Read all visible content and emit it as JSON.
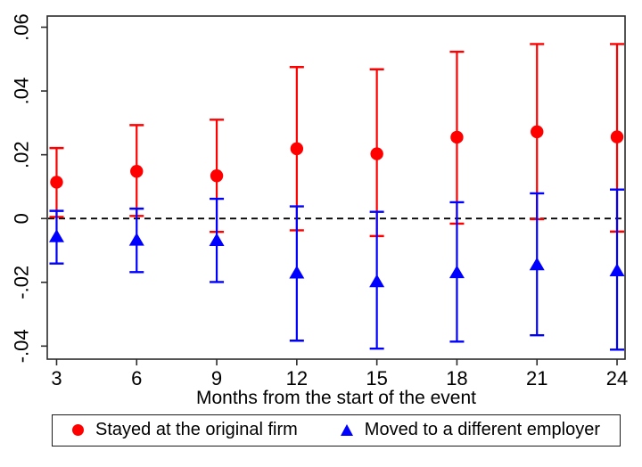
{
  "figure": {
    "background": "#ffffff",
    "axis_color": "#2b2b2b",
    "text_color": "#000000"
  },
  "chart_data": {
    "type": "scatter",
    "subtype": "errorbar",
    "title": "",
    "xlabel": "Months from the start of the event",
    "ylabel": "",
    "grid": false,
    "x": [
      3,
      6,
      9,
      12,
      15,
      18,
      21,
      24
    ],
    "x_tick_labels": [
      "3",
      "6",
      "9",
      "12",
      "15",
      "18",
      "21",
      "24"
    ],
    "y_ticks": [
      0.06,
      0.04,
      0.02,
      0,
      -0.02,
      -0.04
    ],
    "y_tick_labels": [
      ".06",
      ".04",
      ".02",
      "0",
      "-.02",
      "-.04"
    ],
    "xlim": [
      2.65,
      24.3
    ],
    "ylim": [
      -0.0441,
      0.0635
    ],
    "zero_line": {
      "value": 0,
      "style": "dashed",
      "color": "#000000"
    },
    "legend": {
      "position": "bottom-center",
      "border": true
    },
    "series": [
      {
        "name": "Stayed at the original firm",
        "marker": "circle",
        "color": "#fe0000",
        "y": [
          0.0114,
          0.0148,
          0.0134,
          0.0219,
          0.0203,
          0.0255,
          0.0272,
          0.0256
        ],
        "ci_low": [
          0.0005,
          0.0008,
          -0.0042,
          -0.0037,
          -0.0055,
          -0.0016,
          -0.0002,
          -0.0041
        ],
        "ci_high": [
          0.0221,
          0.0293,
          0.031,
          0.0475,
          0.0468,
          0.0523,
          0.0547,
          0.0547
        ]
      },
      {
        "name": "Moved to a different employer",
        "marker": "triangle",
        "color": "#0000fe",
        "y": [
          -0.0056,
          -0.0067,
          -0.0068,
          -0.017,
          -0.0197,
          -0.0169,
          -0.0144,
          -0.0163
        ],
        "ci_low": [
          -0.0141,
          -0.0168,
          -0.0199,
          -0.0383,
          -0.0408,
          -0.0386,
          -0.0366,
          -0.0411
        ],
        "ci_high": [
          0.0024,
          0.0031,
          0.0062,
          0.0038,
          0.0021,
          0.0051,
          0.0079,
          0.0091
        ]
      }
    ]
  }
}
